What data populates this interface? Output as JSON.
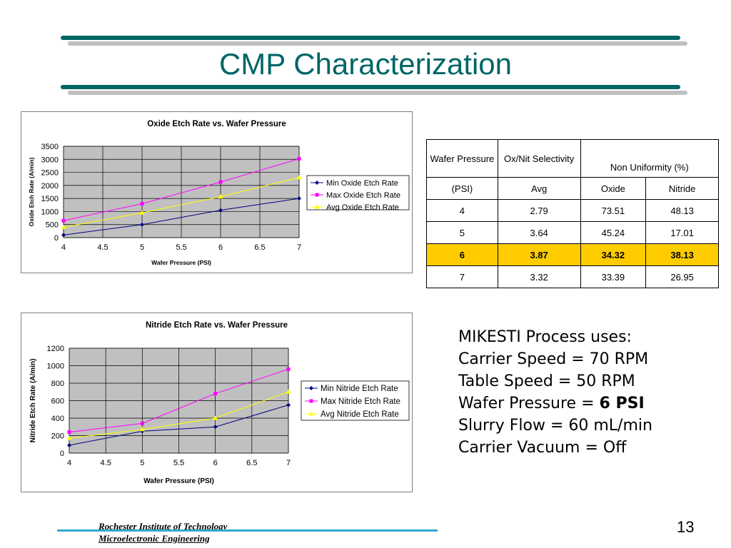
{
  "slide": {
    "title": "CMP Characterization",
    "page_number": "13",
    "footer_line1": "Rochester Institute of Technology",
    "footer_line2": "Microelectronic Engineering",
    "accent_color": "#006666",
    "bar_teal": "#006666",
    "bar_gray": "#c0c0c0",
    "footer_bar_color": "#33aacc"
  },
  "table": {
    "header1": [
      "Wafer Pressure",
      "Ox/Nit Selectivity",
      "Non Uniformity (%)"
    ],
    "header2": [
      "(PSI)",
      "Avg",
      "Oxide",
      "Nitride"
    ],
    "rows": [
      [
        "4",
        "2.79",
        "73.51",
        "48.13"
      ],
      [
        "5",
        "3.64",
        "45.24",
        "17.01"
      ],
      [
        "6",
        "3.87",
        "34.32",
        "38.13"
      ],
      [
        "7",
        "3.32",
        "33.39",
        "26.95"
      ]
    ],
    "highlight_row": 2,
    "highlight_color": "#ffcc00"
  },
  "process": {
    "heading": "MIKESTI Process uses:",
    "line1": "Carrier Speed = 70 RPM",
    "line2": "Table Speed = 50 RPM",
    "line3_prefix": "Wafer Pressure = ",
    "line3_value": "6 PSI",
    "line4": "Slurry Flow = 60 mL/min",
    "line5": "Carrier Vacuum = Off"
  },
  "chart_data": [
    {
      "type": "line",
      "title": "Oxide Etch Rate vs. Wafer Pressure",
      "xlabel": "Wafer Pressure (PSI)",
      "ylabel": "Oxide Etch Rate (A/min)",
      "xlim": [
        4,
        7
      ],
      "ylim": [
        0,
        3500
      ],
      "xticks": [
        4,
        4.5,
        5,
        5.5,
        6,
        6.5,
        7
      ],
      "yticks": [
        0,
        500,
        1000,
        1500,
        2000,
        2500,
        3000,
        3500
      ],
      "grid": true,
      "plot_background": "#c0c0c0",
      "legend_position": "right",
      "series": [
        {
          "name": "Min Oxide Etch Rate",
          "color": "#000080",
          "marker": "diamond",
          "x": [
            4,
            5,
            6,
            7
          ],
          "y": [
            100,
            500,
            1050,
            1500
          ]
        },
        {
          "name": "Max Oxide Etch Rate",
          "color": "#ff00ff",
          "marker": "square",
          "x": [
            4,
            5,
            6,
            7
          ],
          "y": [
            650,
            1300,
            2130,
            3020
          ]
        },
        {
          "name": "Avg Oxide Etch Rate",
          "color": "#ffff00",
          "marker": "triangle",
          "x": [
            4,
            5,
            6,
            7
          ],
          "y": [
            400,
            950,
            1570,
            2300
          ]
        }
      ]
    },
    {
      "type": "line",
      "title": "Nitride Etch Rate vs. Wafer Pressure",
      "xlabel": "Wafer Pressure (PSI)",
      "ylabel": "Nitride Etch Rate (A/min)",
      "xlim": [
        4,
        7
      ],
      "ylim": [
        0,
        1200
      ],
      "xticks": [
        4,
        4.5,
        5,
        5.5,
        6,
        6.5,
        7
      ],
      "yticks": [
        0,
        200,
        400,
        600,
        800,
        1000,
        1200
      ],
      "grid": true,
      "plot_background": "#c0c0c0",
      "legend_position": "right",
      "series": [
        {
          "name": "Min Nitride Etch Rate",
          "color": "#000080",
          "marker": "diamond",
          "x": [
            4,
            5,
            6,
            7
          ],
          "y": [
            90,
            250,
            300,
            550
          ]
        },
        {
          "name": "Max Nitride Etch Rate",
          "color": "#ff00ff",
          "marker": "square",
          "x": [
            4,
            5,
            6,
            7
          ],
          "y": [
            240,
            340,
            680,
            960
          ]
        },
        {
          "name": "Avg Nitride Etch Rate",
          "color": "#ffff00",
          "marker": "triangle",
          "x": [
            4,
            5,
            6,
            7
          ],
          "y": [
            170,
            270,
            400,
            700
          ]
        }
      ]
    }
  ]
}
